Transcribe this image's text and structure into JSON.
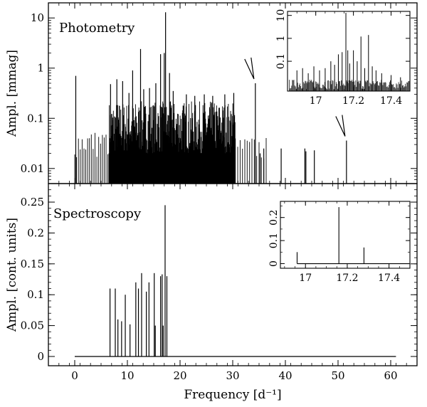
{
  "chart_data": [
    {
      "id": "photometry",
      "type": "bar",
      "scale": "log",
      "title": "Photometry",
      "xlabel": "Frequency [d⁻¹]",
      "ylabel": "Ampl. [mmag]",
      "xlim": [
        -5,
        65
      ],
      "ylim": [
        0.005,
        20
      ],
      "x_ticks": [
        0,
        10,
        20,
        30,
        40,
        50,
        60
      ],
      "y_ticks": [
        {
          "value": 0.01,
          "label": "0.01"
        },
        {
          "value": 0.1,
          "label": "0.1"
        },
        {
          "value": 1,
          "label": "1"
        },
        {
          "value": 10,
          "label": "10"
        }
      ],
      "noise_range": [
        0.02,
        0.22
      ],
      "noise_band": [
        6.5,
        30.5
      ],
      "x": [
        0.2,
        6.8,
        8.0,
        9.1,
        10.3,
        11.0,
        12.5,
        13.1,
        14.2,
        15.4,
        16.3,
        17.0,
        17.25,
        18.0,
        18.7,
        21.2,
        22.8,
        24.6,
        26.2,
        28.5,
        30.2,
        34.3,
        35.2,
        35.9,
        39.2,
        43.7,
        43.9,
        45.5,
        51.6
      ],
      "values": [
        0.7,
        0.48,
        0.6,
        0.55,
        0.32,
        0.9,
        2.4,
        0.38,
        0.4,
        0.5,
        1.9,
        2.0,
        13.0,
        0.8,
        0.35,
        0.3,
        0.28,
        0.3,
        0.28,
        0.3,
        0.32,
        0.5,
        0.02,
        0.025,
        0.025,
        0.025,
        0.022,
        0.023,
        0.036
      ],
      "arrows": [
        {
          "x": 34.3,
          "y": 0.5
        },
        {
          "x": 51.6,
          "y": 0.036
        }
      ],
      "inset": {
        "xlim": [
          16.85,
          17.5
        ],
        "ylim": [
          0.005,
          15
        ],
        "x_ticks": [
          17,
          17.2,
          17.4
        ],
        "y_ticks": [
          {
            "value": 0.1,
            "label": "0.1"
          },
          {
            "value": 1,
            "label": "1"
          },
          {
            "value": 10,
            "label": "10"
          }
        ],
        "x": [
          16.9,
          16.93,
          16.96,
          16.99,
          17.02,
          17.05,
          17.08,
          17.1,
          17.12,
          17.14,
          17.16,
          17.17,
          17.18,
          17.2,
          17.22,
          17.24,
          17.26,
          17.28,
          17.3,
          17.32,
          17.35,
          17.4,
          17.45
        ],
        "values": [
          0.04,
          0.05,
          0.03,
          0.06,
          0.04,
          0.05,
          0.1,
          0.07,
          0.2,
          0.25,
          13.0,
          0.3,
          0.08,
          0.3,
          0.1,
          1.2,
          0.05,
          1.4,
          0.06,
          0.04,
          0.03,
          0.025,
          0.02
        ]
      }
    },
    {
      "id": "spectroscopy",
      "type": "bar",
      "title": "Spectroscopy",
      "xlabel": "Frequency [d⁻¹]",
      "ylabel": "Ampl. [cont. units]",
      "xlim": [
        -5,
        65
      ],
      "ylim": [
        -0.015,
        0.28
      ],
      "x_ticks": [
        {
          "value": 0,
          "label": "0"
        },
        {
          "value": 10,
          "label": "10"
        },
        {
          "value": 20,
          "label": "20"
        },
        {
          "value": 30,
          "label": "30"
        },
        {
          "value": 40,
          "label": "40"
        },
        {
          "value": 50,
          "label": "50"
        },
        {
          "value": 60,
          "label": "60"
        }
      ],
      "y_ticks": [
        {
          "value": 0,
          "label": "0"
        },
        {
          "value": 0.05,
          "label": "0.05"
        },
        {
          "value": 0.1,
          "label": "0.1"
        },
        {
          "value": 0.15,
          "label": "0.15"
        },
        {
          "value": 0.2,
          "label": "0.2"
        },
        {
          "value": 0.25,
          "label": "0.25"
        }
      ],
      "baseline_range": [
        0,
        61
      ],
      "x": [
        6.7,
        7.7,
        8.2,
        8.9,
        9.6,
        10.5,
        11.6,
        12.1,
        12.7,
        13.6,
        14.1,
        15.1,
        15.3,
        16.3,
        16.6,
        16.8,
        17.16,
        17.5
      ],
      "values": [
        0.11,
        0.11,
        0.06,
        0.057,
        0.1,
        0.052,
        0.12,
        0.11,
        0.135,
        0.105,
        0.12,
        0.135,
        0.05,
        0.13,
        0.133,
        0.05,
        0.245,
        0.13
      ],
      "inset": {
        "xlim": [
          16.88,
          17.5
        ],
        "ylim": [
          -0.02,
          0.27
        ],
        "x_ticks": [
          17,
          17.2,
          17.4
        ],
        "y_ticks": [
          {
            "value": 0,
            "label": "0"
          },
          {
            "value": 0.1,
            "label": "0.1"
          },
          {
            "value": 0.2,
            "label": "0.2"
          }
        ],
        "baseline_range": [
          16.96,
          17.5
        ],
        "x": [
          16.96,
          17.16,
          17.28
        ],
        "values": [
          0.05,
          0.245,
          0.07
        ]
      }
    }
  ]
}
